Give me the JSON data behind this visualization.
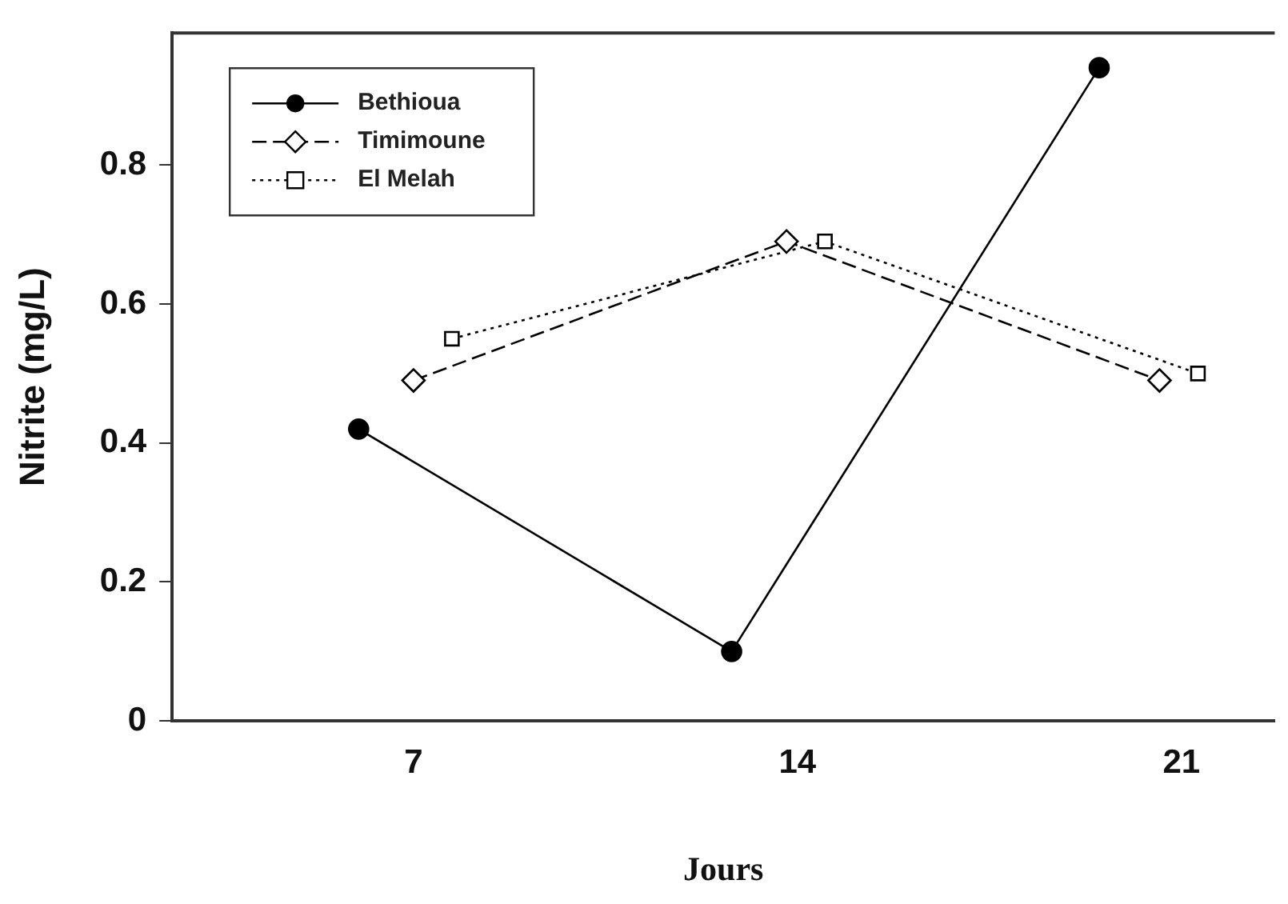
{
  "chart_data": {
    "type": "line",
    "xlabel": "Jours",
    "ylabel": "Nitrite (mg/L)",
    "series": [
      {
        "name": "Bethioua",
        "color": "#000000",
        "x": [
          6.0,
          12.8,
          19.5
        ],
        "values": [
          0.42,
          0.1,
          0.94
        ],
        "marker": "circle",
        "line_style": "solid"
      },
      {
        "name": "Timimoune",
        "color": "#000000",
        "x": [
          7.0,
          13.8,
          20.6
        ],
        "values": [
          0.49,
          0.69,
          0.49
        ],
        "marker": "diamond",
        "line_style": "dashed"
      },
      {
        "name": "El Melah",
        "color": "#000000",
        "x": [
          7.7,
          14.5,
          21.3
        ],
        "values": [
          0.55,
          0.69,
          0.5
        ],
        "marker": "square",
        "line_style": "dotted"
      }
    ],
    "xlim": [
      2.6,
      22.7
    ],
    "xticks": [
      7,
      14,
      21
    ],
    "ylim": [
      0,
      0.99
    ],
    "yticks": [
      0,
      0.2,
      0.4,
      0.6,
      0.8
    ],
    "grid": false,
    "legend": "top left"
  }
}
